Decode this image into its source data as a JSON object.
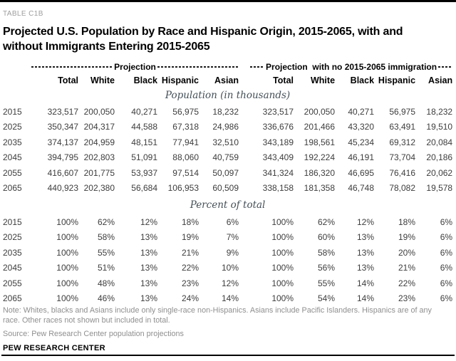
{
  "page": {
    "table_label": "TABLE C1B",
    "title_line1": "Projected U.S. Population by Race and Hispanic Origin, 2015-2065, with and",
    "title_line2": "without Immigrants Entering 2015-2065",
    "note": "Note: Whites, blacks and Asians include only single-race non-Hispanics. Asians include Pacific Islanders. Hispanics are of any race. Other races not shown but included in total.",
    "source": "Source: Pew Research Center population projections",
    "brand": "PEW RESEARCH CENTER"
  },
  "colors": {
    "accent_bar": "#000000",
    "table_label_gray": "#9d9d9d",
    "body_text": "#3d3d3d",
    "footnote_gray": "#8f8f8f",
    "section_label": "#455058"
  },
  "chart_data": {
    "type": "table",
    "title": "Projected U.S. Population by Race and Hispanic Origin, 2015-2065, with and without Immigrants Entering 2015-2065",
    "row_header": "year",
    "column_groups": [
      {
        "label": "Projection",
        "columns": [
          "Total",
          "White",
          "Black",
          "Hispanic",
          "Asian"
        ]
      },
      {
        "label": "Projection  with no 2015-2065 immigration",
        "columns": [
          "Total",
          "White",
          "Black",
          "Hispanic",
          "Asian"
        ]
      }
    ],
    "sections": [
      {
        "label": "Population (in thousands)",
        "rows": [
          {
            "year": "2015",
            "projection": [
              "323,517",
              "200,050",
              "40,271",
              "56,975",
              "18,232"
            ],
            "no_immigration": [
              "323,517",
              "200,050",
              "40,271",
              "56,975",
              "18,232"
            ]
          },
          {
            "year": "2025",
            "projection": [
              "350,347",
              "204,317",
              "44,588",
              "67,318",
              "24,986"
            ],
            "no_immigration": [
              "336,676",
              "201,466",
              "43,320",
              "63,491",
              "19,510"
            ]
          },
          {
            "year": "2035",
            "projection": [
              "374,137",
              "204,959",
              "48,151",
              "77,941",
              "32,510"
            ],
            "no_immigration": [
              "343,189",
              "198,561",
              "45,234",
              "69,312",
              "20,084"
            ]
          },
          {
            "year": "2045",
            "projection": [
              "394,795",
              "202,803",
              "51,091",
              "88,060",
              "40,759"
            ],
            "no_immigration": [
              "343,409",
              "192,224",
              "46,191",
              "73,704",
              "20,186"
            ]
          },
          {
            "year": "2055",
            "projection": [
              "416,607",
              "201,775",
              "53,937",
              "97,514",
              "50,097"
            ],
            "no_immigration": [
              "341,324",
              "186,320",
              "46,695",
              "76,416",
              "20,062"
            ]
          },
          {
            "year": "2065",
            "projection": [
              "440,923",
              "202,380",
              "56,684",
              "106,953",
              "60,509"
            ],
            "no_immigration": [
              "338,158",
              "181,358",
              "46,748",
              "78,082",
              "19,578"
            ]
          }
        ]
      },
      {
        "label": "Percent of total",
        "rows": [
          {
            "year": "2015",
            "projection": [
              "100%",
              "62%",
              "12%",
              "18%",
              "6%"
            ],
            "no_immigration": [
              "100%",
              "62%",
              "12%",
              "18%",
              "6%"
            ]
          },
          {
            "year": "2025",
            "projection": [
              "100%",
              "58%",
              "13%",
              "19%",
              "7%"
            ],
            "no_immigration": [
              "100%",
              "60%",
              "13%",
              "19%",
              "6%"
            ]
          },
          {
            "year": "2035",
            "projection": [
              "100%",
              "55%",
              "13%",
              "21%",
              "9%"
            ],
            "no_immigration": [
              "100%",
              "58%",
              "13%",
              "20%",
              "6%"
            ]
          },
          {
            "year": "2045",
            "projection": [
              "100%",
              "51%",
              "13%",
              "22%",
              "10%"
            ],
            "no_immigration": [
              "100%",
              "56%",
              "13%",
              "21%",
              "6%"
            ]
          },
          {
            "year": "2055",
            "projection": [
              "100%",
              "48%",
              "13%",
              "23%",
              "12%"
            ],
            "no_immigration": [
              "100%",
              "55%",
              "14%",
              "22%",
              "6%"
            ]
          },
          {
            "year": "2065",
            "projection": [
              "100%",
              "46%",
              "13%",
              "24%",
              "14%"
            ],
            "no_immigration": [
              "100%",
              "54%",
              "14%",
              "23%",
              "6%"
            ]
          }
        ]
      }
    ]
  }
}
